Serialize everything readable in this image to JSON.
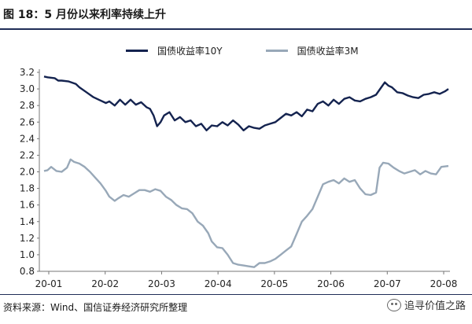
{
  "header": {
    "title": "图 18：5 月份以来利率持续上升"
  },
  "footer": {
    "source": "资料来源：Wind、国信证券经济研究所整理",
    "watermark": "追寻价值之路"
  },
  "colors": {
    "series_10y": "#14234f",
    "series_3m": "#98a8b8",
    "rule": "#1f2d57"
  },
  "chart_data": {
    "type": "line",
    "title": "",
    "xlabel": "",
    "ylabel": "",
    "ylim": [
      0.8,
      3.2
    ],
    "yticks": [
      "3.2",
      "3.0",
      "2.8",
      "2.6",
      "2.4",
      "2.2",
      "2.0",
      "1.8",
      "1.6",
      "1.4",
      "1.2",
      "1.0",
      "0.8"
    ],
    "xticks": [
      "20-01",
      "20-02",
      "20-03",
      "20-04",
      "20-05",
      "20-06",
      "20-07",
      "20-08"
    ],
    "grid": false,
    "legend_position": "top",
    "series": [
      {
        "name": "国债收益率10Y",
        "points": [
          [
            0.0,
            3.15
          ],
          [
            0.1,
            3.14
          ],
          [
            0.3,
            3.13
          ],
          [
            0.4,
            3.1
          ],
          [
            0.5,
            3.1
          ],
          [
            0.7,
            3.09
          ],
          [
            0.9,
            3.06
          ],
          [
            1.0,
            3.02
          ],
          [
            1.2,
            2.96
          ],
          [
            1.4,
            2.9
          ],
          [
            1.6,
            2.86
          ],
          [
            1.75,
            2.83
          ],
          [
            1.85,
            2.85
          ],
          [
            2.0,
            2.8
          ],
          [
            2.15,
            2.87
          ],
          [
            2.3,
            2.81
          ],
          [
            2.45,
            2.87
          ],
          [
            2.6,
            2.81
          ],
          [
            2.75,
            2.84
          ],
          [
            2.9,
            2.78
          ],
          [
            3.0,
            2.76
          ],
          [
            3.1,
            2.68
          ],
          [
            3.2,
            2.55
          ],
          [
            3.3,
            2.6
          ],
          [
            3.4,
            2.68
          ],
          [
            3.55,
            2.72
          ],
          [
            3.7,
            2.62
          ],
          [
            3.85,
            2.66
          ],
          [
            4.0,
            2.6
          ],
          [
            4.15,
            2.62
          ],
          [
            4.3,
            2.55
          ],
          [
            4.45,
            2.58
          ],
          [
            4.6,
            2.5
          ],
          [
            4.75,
            2.56
          ],
          [
            4.9,
            2.55
          ],
          [
            5.05,
            2.6
          ],
          [
            5.2,
            2.56
          ],
          [
            5.35,
            2.62
          ],
          [
            5.5,
            2.57
          ],
          [
            5.65,
            2.5
          ],
          [
            5.8,
            2.55
          ],
          [
            5.95,
            2.53
          ],
          [
            6.1,
            2.52
          ],
          [
            6.25,
            2.56
          ],
          [
            6.4,
            2.58
          ],
          [
            6.55,
            2.6
          ],
          [
            6.7,
            2.65
          ],
          [
            6.85,
            2.7
          ],
          [
            7.0,
            2.68
          ],
          [
            7.15,
            2.72
          ],
          [
            7.3,
            2.67
          ],
          [
            7.45,
            2.75
          ],
          [
            7.6,
            2.73
          ],
          [
            7.75,
            2.82
          ],
          [
            7.9,
            2.85
          ],
          [
            8.05,
            2.8
          ],
          [
            8.2,
            2.87
          ],
          [
            8.35,
            2.82
          ],
          [
            8.5,
            2.88
          ],
          [
            8.65,
            2.9
          ],
          [
            8.8,
            2.86
          ],
          [
            8.95,
            2.85
          ],
          [
            9.1,
            2.88
          ],
          [
            9.25,
            2.9
          ],
          [
            9.4,
            2.93
          ],
          [
            9.55,
            3.02
          ],
          [
            9.65,
            3.08
          ],
          [
            9.75,
            3.04
          ],
          [
            9.85,
            3.02
          ],
          [
            10.0,
            2.96
          ],
          [
            10.15,
            2.95
          ],
          [
            10.3,
            2.92
          ],
          [
            10.45,
            2.9
          ],
          [
            10.6,
            2.89
          ],
          [
            10.75,
            2.93
          ],
          [
            10.9,
            2.94
          ],
          [
            11.05,
            2.96
          ],
          [
            11.2,
            2.94
          ],
          [
            11.35,
            2.97
          ],
          [
            11.45,
            3.0
          ]
        ]
      },
      {
        "name": "国债收益率3M",
        "points": [
          [
            0.0,
            2.01
          ],
          [
            0.1,
            2.02
          ],
          [
            0.2,
            2.06
          ],
          [
            0.35,
            2.01
          ],
          [
            0.5,
            2.0
          ],
          [
            0.65,
            2.05
          ],
          [
            0.75,
            2.15
          ],
          [
            0.85,
            2.12
          ],
          [
            1.0,
            2.1
          ],
          [
            1.15,
            2.06
          ],
          [
            1.3,
            2.0
          ],
          [
            1.45,
            1.93
          ],
          [
            1.6,
            1.86
          ],
          [
            1.75,
            1.77
          ],
          [
            1.85,
            1.7
          ],
          [
            2.0,
            1.65
          ],
          [
            2.1,
            1.68
          ],
          [
            2.25,
            1.72
          ],
          [
            2.4,
            1.7
          ],
          [
            2.55,
            1.74
          ],
          [
            2.7,
            1.78
          ],
          [
            2.85,
            1.78
          ],
          [
            3.0,
            1.76
          ],
          [
            3.15,
            1.79
          ],
          [
            3.3,
            1.77
          ],
          [
            3.45,
            1.7
          ],
          [
            3.6,
            1.66
          ],
          [
            3.75,
            1.6
          ],
          [
            3.9,
            1.56
          ],
          [
            4.05,
            1.55
          ],
          [
            4.2,
            1.5
          ],
          [
            4.35,
            1.4
          ],
          [
            4.5,
            1.35
          ],
          [
            4.65,
            1.26
          ],
          [
            4.75,
            1.16
          ],
          [
            4.9,
            1.09
          ],
          [
            5.05,
            1.08
          ],
          [
            5.2,
            1.0
          ],
          [
            5.35,
            0.9
          ],
          [
            5.5,
            0.88
          ],
          [
            5.65,
            0.87
          ],
          [
            5.8,
            0.86
          ],
          [
            5.95,
            0.85
          ],
          [
            6.1,
            0.9
          ],
          [
            6.25,
            0.9
          ],
          [
            6.4,
            0.92
          ],
          [
            6.55,
            0.95
          ],
          [
            6.7,
            1.0
          ],
          [
            6.85,
            1.05
          ],
          [
            7.0,
            1.1
          ],
          [
            7.15,
            1.25
          ],
          [
            7.3,
            1.4
          ],
          [
            7.45,
            1.47
          ],
          [
            7.6,
            1.55
          ],
          [
            7.75,
            1.7
          ],
          [
            7.9,
            1.85
          ],
          [
            8.05,
            1.88
          ],
          [
            8.2,
            1.9
          ],
          [
            8.35,
            1.86
          ],
          [
            8.5,
            1.92
          ],
          [
            8.65,
            1.88
          ],
          [
            8.8,
            1.9
          ],
          [
            8.95,
            1.8
          ],
          [
            9.1,
            1.73
          ],
          [
            9.25,
            1.72
          ],
          [
            9.4,
            1.75
          ],
          [
            9.5,
            2.05
          ],
          [
            9.6,
            2.11
          ],
          [
            9.75,
            2.1
          ],
          [
            9.9,
            2.05
          ],
          [
            10.05,
            2.01
          ],
          [
            10.2,
            1.98
          ],
          [
            10.35,
            2.0
          ],
          [
            10.5,
            2.02
          ],
          [
            10.65,
            1.97
          ],
          [
            10.8,
            2.01
          ],
          [
            10.95,
            1.98
          ],
          [
            11.1,
            1.97
          ],
          [
            11.25,
            2.06
          ],
          [
            11.45,
            2.07
          ]
        ]
      }
    ]
  }
}
